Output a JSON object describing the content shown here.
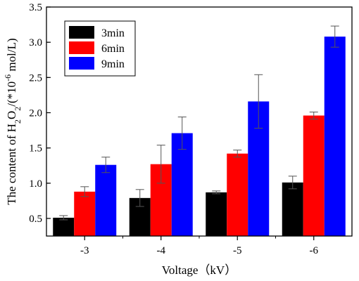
{
  "chart_data": {
    "type": "bar",
    "title": "",
    "xlabel": "Voltage（kV）",
    "ylabel": {
      "prefix": "The content of H",
      "sub1": "2",
      "mid": "O",
      "sub2": "2",
      "unit_open": "/(*10",
      "exp": "-6",
      "unit_close": " mol/L)"
    },
    "categories": [
      "-3",
      "-4",
      "-5",
      "-6"
    ],
    "ylim": [
      0.25,
      3.5
    ],
    "yticks": [
      "0.5",
      "1.0",
      "1.5",
      "2.0",
      "2.5",
      "3.0",
      "3.5"
    ],
    "legend_position": "top-left",
    "grid": false,
    "series": [
      {
        "name": "3min",
        "color": "#000000",
        "values": [
          0.51,
          0.79,
          0.87,
          1.01
        ],
        "errors": [
          0.03,
          0.12,
          0.02,
          0.09
        ]
      },
      {
        "name": "6min",
        "color": "#ff0000",
        "values": [
          0.88,
          1.27,
          1.42,
          1.96
        ],
        "errors": [
          0.07,
          0.27,
          0.05,
          0.05
        ]
      },
      {
        "name": "9min",
        "color": "#0000ff",
        "values": [
          1.26,
          1.71,
          2.16,
          3.08
        ],
        "errors": [
          0.11,
          0.23,
          0.38,
          0.15
        ]
      }
    ]
  }
}
